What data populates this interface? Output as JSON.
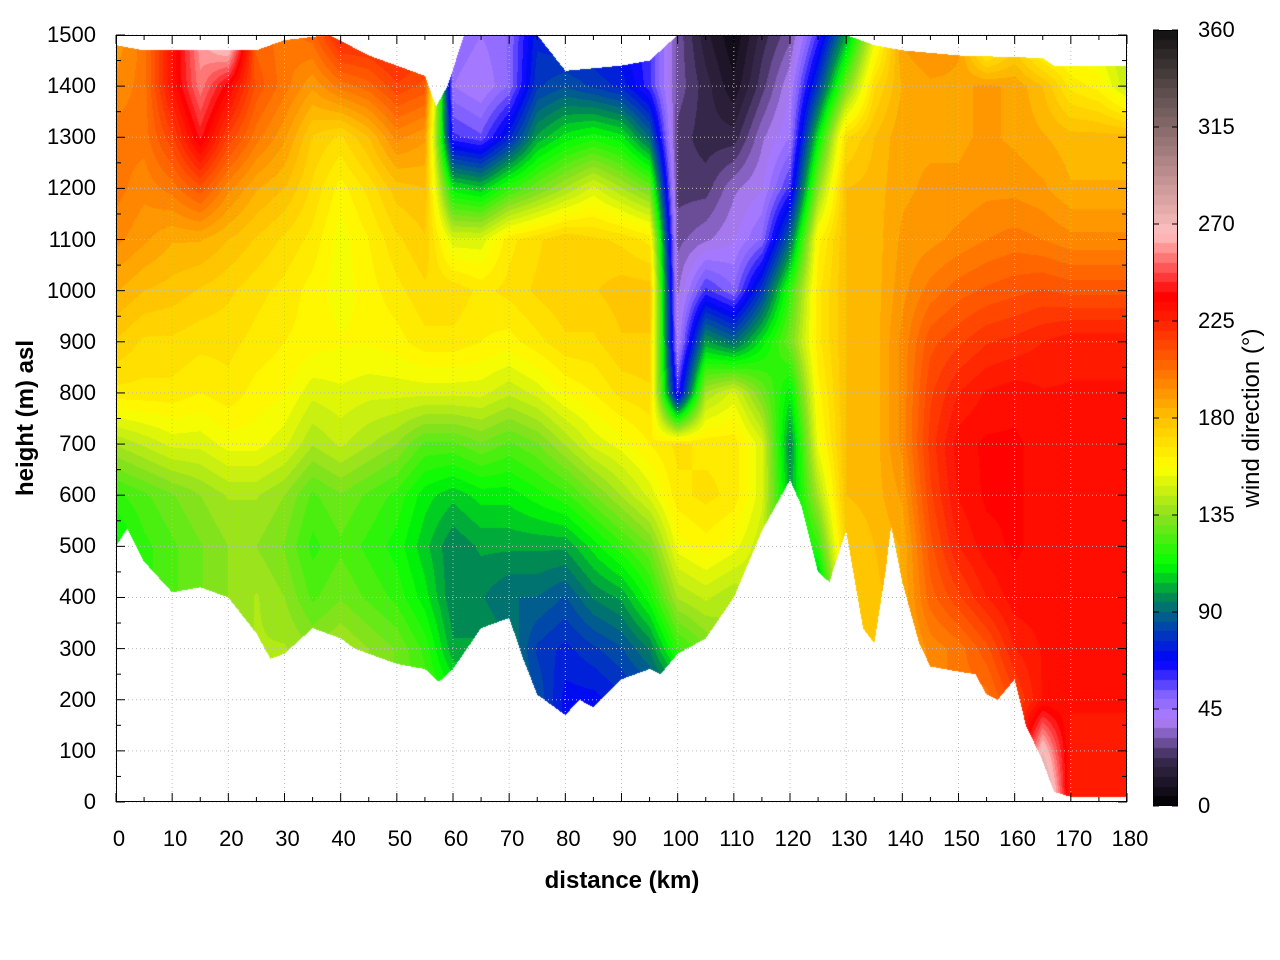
{
  "chart_data": {
    "type": "heatmap",
    "title": "",
    "xlabel": "distance (km)",
    "ylabel": "height (m) asl",
    "colorbar_label": "wind direction (°)",
    "xlim": [
      0,
      180
    ],
    "ylim": [
      0,
      1500
    ],
    "clim": [
      0,
      360
    ],
    "x_ticks": [
      "0",
      "10",
      "20",
      "30",
      "40",
      "50",
      "60",
      "70",
      "80",
      "90",
      "100",
      "110",
      "120",
      "130",
      "140",
      "150",
      "160",
      "170",
      "180"
    ],
    "y_ticks": [
      "0",
      "100",
      "200",
      "300",
      "400",
      "500",
      "600",
      "700",
      "800",
      "900",
      "1000",
      "1100",
      "1200",
      "1300",
      "1400",
      "1500"
    ],
    "colorbar_ticks": [
      "0",
      "45",
      "90",
      "135",
      "180",
      "225",
      "270",
      "315",
      "360"
    ],
    "grid": true,
    "colormap": [
      [
        0,
        "#000000"
      ],
      [
        22,
        "#3a2a50"
      ],
      [
        40,
        "#b080ff"
      ],
      [
        52,
        "#8060ff"
      ],
      [
        67,
        "#0000ff"
      ],
      [
        85,
        "#0050a0"
      ],
      [
        97,
        "#008a50"
      ],
      [
        112,
        "#00ff00"
      ],
      [
        135,
        "#90e020"
      ],
      [
        157,
        "#ffff00"
      ],
      [
        180,
        "#ffc000"
      ],
      [
        202,
        "#ff7000"
      ],
      [
        225,
        "#ff2000"
      ],
      [
        237,
        "#ff0000"
      ],
      [
        265,
        "#ffc0c0"
      ],
      [
        292,
        "#c09090"
      ],
      [
        330,
        "#605050"
      ],
      [
        360,
        "#101010"
      ]
    ],
    "heights": [
      0,
      100,
      200,
      300,
      400,
      500,
      600,
      700,
      800,
      900,
      1000,
      1100,
      1200,
      1300,
      1400,
      1500
    ],
    "distances": [
      0,
      5,
      10,
      15,
      20,
      25,
      30,
      35,
      40,
      45,
      50,
      55,
      60,
      65,
      70,
      75,
      80,
      85,
      90,
      95,
      100,
      105,
      110,
      115,
      120,
      125,
      130,
      135,
      140,
      145,
      150,
      155,
      160,
      165,
      170,
      175,
      180
    ],
    "wind_direction": [
      [
        120,
        120,
        120,
        120,
        115,
        110,
        120,
        140,
        165,
        175,
        185,
        195,
        200,
        200,
        195,
        190
      ],
      [
        125,
        125,
        125,
        125,
        120,
        120,
        125,
        145,
        165,
        170,
        180,
        190,
        195,
        200,
        200,
        200
      ],
      [
        125,
        125,
        125,
        125,
        125,
        125,
        130,
        150,
        165,
        170,
        178,
        185,
        200,
        215,
        230,
        230
      ],
      [
        130,
        130,
        130,
        130,
        130,
        130,
        135,
        150,
        162,
        168,
        175,
        185,
        210,
        240,
        255,
        260
      ],
      [
        135,
        135,
        135,
        135,
        135,
        135,
        140,
        155,
        165,
        168,
        172,
        180,
        195,
        215,
        235,
        280
      ],
      [
        140,
        140,
        140,
        140,
        140,
        135,
        140,
        155,
        160,
        165,
        168,
        175,
        185,
        200,
        210,
        205
      ],
      [
        140,
        140,
        140,
        140,
        135,
        130,
        135,
        150,
        158,
        162,
        165,
        170,
        180,
        190,
        200,
        200
      ],
      [
        135,
        135,
        135,
        135,
        125,
        120,
        125,
        140,
        150,
        160,
        160,
        165,
        170,
        175,
        190,
        205
      ],
      [
        140,
        140,
        140,
        140,
        130,
        125,
        130,
        145,
        152,
        158,
        155,
        155,
        160,
        170,
        200,
        225
      ],
      [
        135,
        135,
        135,
        135,
        125,
        120,
        125,
        140,
        150,
        158,
        160,
        162,
        168,
        180,
        205,
        225
      ],
      [
        130,
        130,
        130,
        130,
        120,
        115,
        120,
        135,
        150,
        160,
        165,
        170,
        178,
        195,
        215,
        230
      ],
      [
        125,
        125,
        125,
        120,
        110,
        105,
        110,
        125,
        150,
        165,
        170,
        175,
        180,
        190,
        210,
        220
      ],
      [
        115,
        115,
        115,
        100,
        95,
        95,
        105,
        125,
        150,
        165,
        170,
        150,
        110,
        60,
        45,
        50
      ],
      [
        100,
        100,
        100,
        100,
        95,
        100,
        110,
        130,
        150,
        162,
        165,
        150,
        105,
        55,
        40,
        45
      ],
      [
        95,
        95,
        95,
        95,
        90,
        100,
        110,
        125,
        145,
        160,
        168,
        165,
        120,
        75,
        50,
        50
      ],
      [
        85,
        85,
        85,
        80,
        90,
        100,
        115,
        130,
        150,
        165,
        172,
        170,
        130,
        100,
        80,
        75
      ],
      [
        70,
        70,
        70,
        75,
        85,
        100,
        120,
        140,
        158,
        170,
        175,
        175,
        140,
        110,
        85,
        70
      ],
      [
        70,
        70,
        70,
        80,
        95,
        110,
        130,
        150,
        162,
        170,
        175,
        172,
        150,
        115,
        80,
        70
      ],
      [
        75,
        75,
        75,
        85,
        100,
        120,
        140,
        155,
        168,
        175,
        178,
        170,
        140,
        110,
        75,
        65
      ],
      [
        80,
        80,
        80,
        95,
        115,
        130,
        150,
        162,
        170,
        175,
        178,
        165,
        130,
        90,
        60,
        60
      ],
      [
        90,
        90,
        90,
        120,
        140,
        155,
        165,
        168,
        60,
        40,
        35,
        30,
        25,
        25,
        30,
        30
      ],
      [
        130,
        130,
        130,
        130,
        145,
        160,
        168,
        165,
        140,
        100,
        60,
        35,
        25,
        20,
        20,
        15
      ],
      [
        140,
        140,
        140,
        140,
        140,
        155,
        165,
        165,
        150,
        90,
        50,
        40,
        35,
        20,
        10,
        5
      ],
      [
        145,
        145,
        145,
        145,
        145,
        145,
        150,
        150,
        130,
        110,
        80,
        50,
        40,
        35,
        25,
        20
      ],
      [
        100,
        100,
        100,
        100,
        100,
        100,
        100,
        95,
        110,
        130,
        120,
        90,
        60,
        45,
        40,
        30
      ],
      [
        90,
        90,
        90,
        90,
        90,
        120,
        140,
        155,
        160,
        165,
        165,
        160,
        135,
        110,
        80,
        60
      ],
      [
        175,
        175,
        175,
        175,
        175,
        175,
        180,
        180,
        180,
        180,
        180,
        180,
        180,
        170,
        130,
        100
      ],
      [
        175,
        175,
        175,
        175,
        178,
        180,
        182,
        182,
        182,
        182,
        182,
        182,
        182,
        180,
        170,
        150
      ],
      [
        185,
        185,
        185,
        185,
        185,
        185,
        190,
        195,
        195,
        195,
        192,
        190,
        188,
        188,
        185,
        190
      ],
      [
        195,
        195,
        195,
        195,
        205,
        210,
        215,
        218,
        215,
        210,
        200,
        192,
        190,
        188,
        188,
        195
      ],
      [
        200,
        200,
        200,
        200,
        215,
        225,
        230,
        232,
        225,
        215,
        205,
        195,
        190,
        188,
        188,
        190
      ],
      [
        200,
        200,
        200,
        210,
        225,
        232,
        235,
        235,
        230,
        220,
        208,
        198,
        192,
        190,
        190,
        150
      ],
      [
        215,
        215,
        215,
        225,
        232,
        235,
        235,
        235,
        232,
        222,
        210,
        200,
        192,
        188,
        188,
        170
      ],
      [
        300,
        270,
        230,
        230,
        232,
        232,
        232,
        232,
        230,
        225,
        212,
        198,
        190,
        185,
        180,
        150
      ],
      [
        225,
        228,
        230,
        230,
        230,
        230,
        232,
        232,
        230,
        228,
        210,
        195,
        185,
        182,
        165,
        150
      ],
      [
        225,
        228,
        230,
        230,
        230,
        230,
        232,
        232,
        230,
        228,
        210,
        195,
        185,
        182,
        160,
        150
      ],
      [
        225,
        228,
        230,
        230,
        230,
        230,
        232,
        232,
        230,
        228,
        210,
        195,
        185,
        182,
        145,
        140
      ]
    ],
    "terrain_profile_km_m": [
      [
        0,
        500
      ],
      [
        2,
        535
      ],
      [
        5,
        470
      ],
      [
        10,
        410
      ],
      [
        15,
        420
      ],
      [
        20,
        400
      ],
      [
        25,
        330
      ],
      [
        27.5,
        280
      ],
      [
        30,
        290
      ],
      [
        35,
        340
      ],
      [
        40,
        320
      ],
      [
        42.5,
        300
      ],
      [
        45,
        290
      ],
      [
        50,
        270
      ],
      [
        55,
        260
      ],
      [
        57.5,
        235
      ],
      [
        60,
        260
      ],
      [
        65,
        340
      ],
      [
        70,
        360
      ],
      [
        72.5,
        280
      ],
      [
        75,
        210
      ],
      [
        80,
        170
      ],
      [
        82.5,
        200
      ],
      [
        85,
        185
      ],
      [
        90,
        240
      ],
      [
        95,
        260
      ],
      [
        97,
        250
      ],
      [
        100,
        290
      ],
      [
        105,
        320
      ],
      [
        110,
        400
      ],
      [
        115,
        530
      ],
      [
        117,
        570
      ],
      [
        120,
        630
      ],
      [
        122,
        580
      ],
      [
        125,
        450
      ],
      [
        127,
        430
      ],
      [
        130,
        530
      ],
      [
        133,
        340
      ],
      [
        135,
        310
      ],
      [
        137,
        450
      ],
      [
        138,
        540
      ],
      [
        140,
        430
      ],
      [
        143,
        310
      ],
      [
        145,
        265
      ],
      [
        150,
        255
      ],
      [
        153,
        250
      ],
      [
        155,
        210
      ],
      [
        157,
        200
      ],
      [
        160,
        240
      ],
      [
        162,
        150
      ],
      [
        165,
        80
      ],
      [
        167,
        20
      ],
      [
        170,
        10
      ],
      [
        180,
        10
      ]
    ],
    "data_top_km_m": [
      [
        0,
        1480
      ],
      [
        5,
        1470
      ],
      [
        25,
        1470
      ],
      [
        30,
        1490
      ],
      [
        38,
        1500
      ],
      [
        45,
        1460
      ],
      [
        55,
        1420
      ],
      [
        57,
        1360
      ],
      [
        59,
        1400
      ],
      [
        62,
        1500
      ],
      [
        75,
        1500
      ],
      [
        80,
        1430
      ],
      [
        90,
        1440
      ],
      [
        95,
        1450
      ],
      [
        100,
        1500
      ],
      [
        130,
        1500
      ],
      [
        135,
        1480
      ],
      [
        140,
        1470
      ],
      [
        150,
        1460
      ],
      [
        165,
        1455
      ],
      [
        167,
        1440
      ],
      [
        180,
        1440
      ]
    ]
  }
}
